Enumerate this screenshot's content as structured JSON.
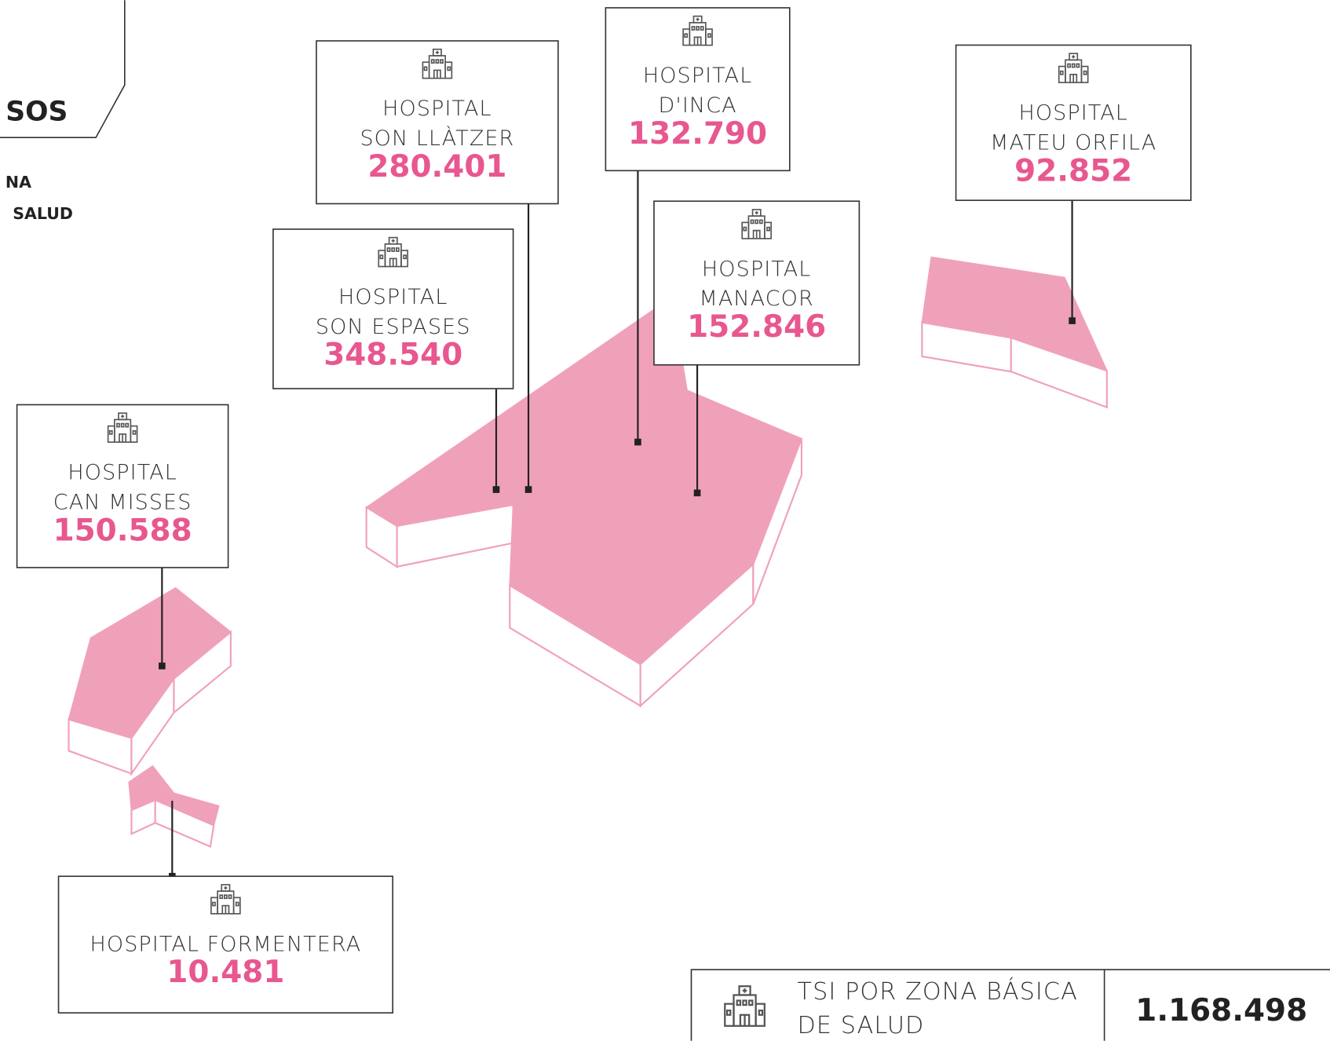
{
  "header": {
    "title": "SOS",
    "subtitle_lines": [
      "NA",
      "SALUD"
    ]
  },
  "hospitals": [
    {
      "name_lines": [
        "HOSPITAL",
        "SON LLÀTZER"
      ],
      "value": "280.401"
    },
    {
      "name_lines": [
        "HOSPITAL",
        "D'INCA"
      ],
      "value": "132.790"
    },
    {
      "name_lines": [
        "HOSPITAL",
        "MANACOR"
      ],
      "value": "152.846"
    },
    {
      "name_lines": [
        "HOSPITAL",
        "SON ESPASES"
      ],
      "value": "348.540"
    },
    {
      "name_lines": [
        "HOSPITAL",
        "MATEU ORFILA"
      ],
      "value": "92.852"
    },
    {
      "name_lines": [
        "HOSPITAL",
        "CAN MISSES"
      ],
      "value": "150.588"
    },
    {
      "name_lines": [
        "HOSPITAL FORMENTERA"
      ],
      "value": "10.481"
    }
  ],
  "total": {
    "label_lines": [
      "TSI POR ZONA BÁSICA",
      "DE SALUD"
    ],
    "value": "1.168.498"
  }
}
